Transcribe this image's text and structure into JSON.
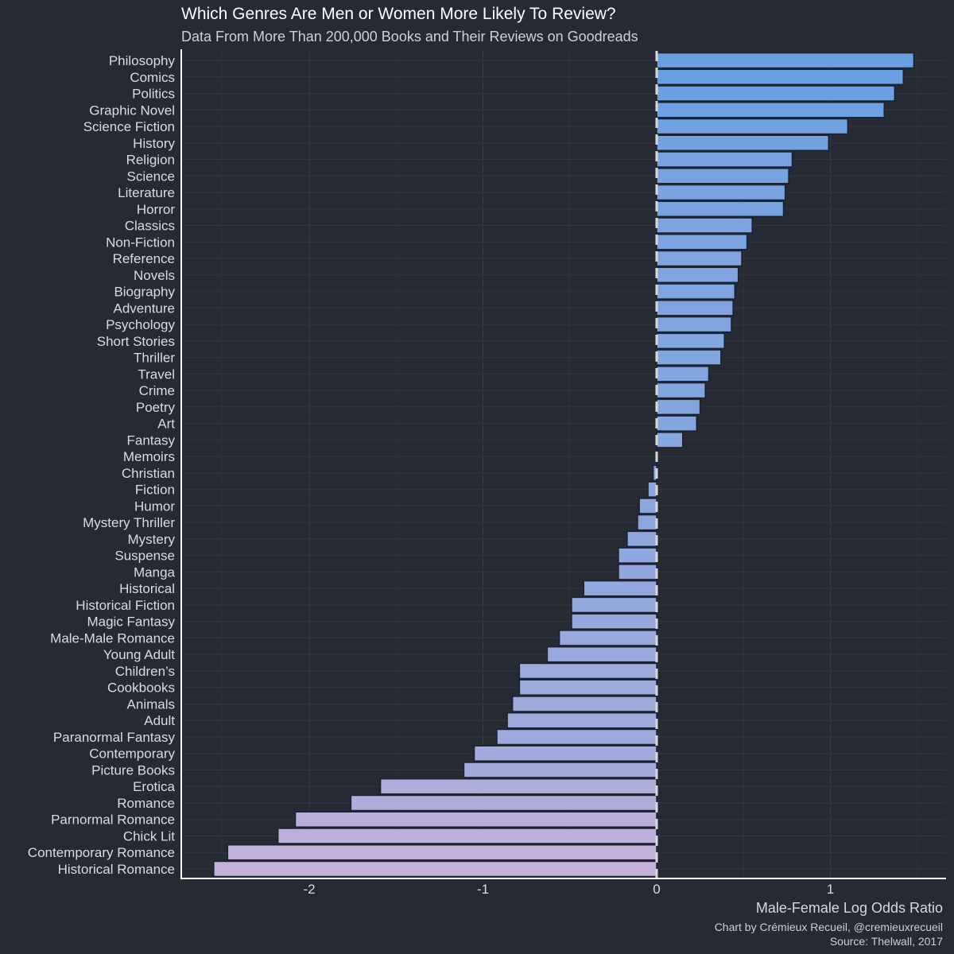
{
  "chart_data": {
    "type": "bar",
    "orientation": "horizontal",
    "title": "Which Genres Are Men or Women More Likely To Review?",
    "subtitle": "Data From More Than 200,000 Books and Their Reviews on Goodreads",
    "xlabel": "Male-Female Log Odds Ratio",
    "ylabel": "",
    "caption_lines": [
      "Chart by Crémieux Recueil, @cremieuxrecueil",
      "Source: Thelwall, 2017"
    ],
    "xlim": [
      -2.75,
      1.7
    ],
    "xticks": [
      -2,
      -1,
      0,
      1
    ],
    "xtick_labels": [
      "-2",
      "-1",
      "0",
      "1"
    ],
    "grid": true,
    "reference_line": {
      "x": 0,
      "style": "dashed"
    },
    "colors": {
      "background": "#252a33",
      "high": "#68a0e2",
      "low": "#c4b1d8",
      "bar_outline": "#1b2230",
      "reference_line": "#d9d9d9"
    },
    "categories": [
      "Philosophy",
      "Comics",
      "Politics",
      "Graphic Novel",
      "Science Fiction",
      "History",
      "Religion",
      "Science",
      "Literature",
      "Horror",
      "Classics",
      "Non-Fiction",
      "Reference",
      "Novels",
      "Biography",
      "Adventure",
      "Psychology",
      "Short Stories",
      "Thriller",
      "Travel",
      "Crime",
      "Poetry",
      "Art",
      "Fantasy",
      "Memoirs",
      "Christian",
      "Fiction",
      "Humor",
      "Mystery Thriller",
      "Mystery",
      "Suspense",
      "Manga",
      "Historical",
      "Historical Fiction",
      "Magic Fantasy",
      "Male-Male Romance",
      "Young Adult",
      "Children’s",
      "Cookbooks",
      "Animals",
      "Adult",
      "Paranormal Fantasy",
      "Contemporary",
      "Picture Books",
      "Erotica",
      "Romance",
      "Parnormal Romance",
      "Chick Lit",
      "Contemporary Romance",
      "Historical Romance"
    ],
    "values": [
      1.48,
      1.42,
      1.37,
      1.31,
      1.1,
      0.99,
      0.78,
      0.76,
      0.74,
      0.73,
      0.55,
      0.52,
      0.49,
      0.47,
      0.45,
      0.44,
      0.43,
      0.39,
      0.37,
      0.3,
      0.28,
      0.25,
      0.23,
      0.15,
      0.0,
      -0.02,
      -0.05,
      -0.1,
      -0.11,
      -0.17,
      -0.22,
      -0.22,
      -0.42,
      -0.49,
      -0.49,
      -0.56,
      -0.63,
      -0.79,
      -0.79,
      -0.83,
      -0.86,
      -0.92,
      -1.05,
      -1.11,
      -1.59,
      -1.76,
      -2.08,
      -2.18,
      -2.47,
      -2.55
    ]
  }
}
